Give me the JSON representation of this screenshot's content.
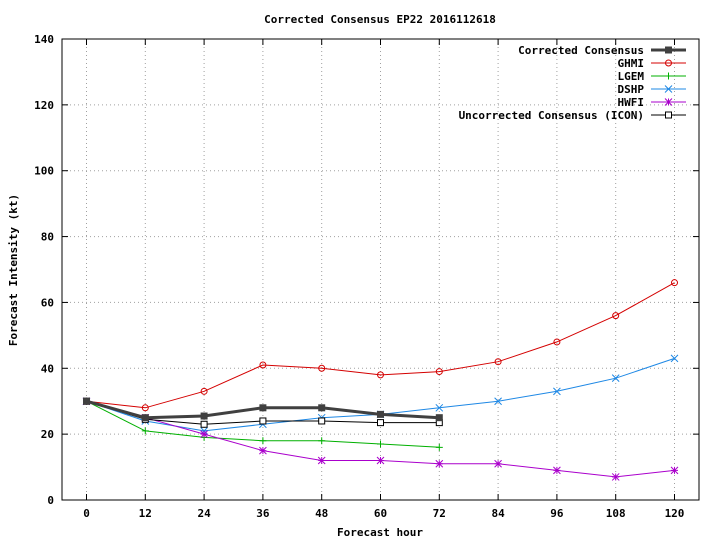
{
  "chart_data": {
    "type": "line",
    "title": "Corrected Consensus  EP22 2016112618",
    "xlabel": "Forecast hour",
    "ylabel": "Forecast Intensity (kt)",
    "xlim": [
      -5,
      125
    ],
    "ylim": [
      0,
      140
    ],
    "xticks": [
      0,
      12,
      24,
      36,
      48,
      60,
      72,
      84,
      96,
      108,
      120
    ],
    "yticks": [
      0,
      20,
      40,
      60,
      80,
      100,
      120,
      140
    ],
    "grid": true,
    "legend_position": "top-right",
    "series": [
      {
        "name": "Corrected Consensus",
        "color": "#404040",
        "marker": "filled-square",
        "x": [
          0,
          12,
          24,
          36,
          48,
          60,
          72
        ],
        "y": [
          30,
          25,
          25.5,
          28,
          28,
          26,
          25
        ]
      },
      {
        "name": "GHMI",
        "color": "#d40000",
        "marker": "circle",
        "x": [
          0,
          12,
          24,
          36,
          48,
          60,
          72,
          84,
          96,
          108,
          120
        ],
        "y": [
          30,
          28,
          33,
          41,
          40,
          38,
          39,
          42,
          48,
          56,
          66
        ]
      },
      {
        "name": "LGEM",
        "color": "#00b000",
        "marker": "plus",
        "x": [
          0,
          12,
          24,
          36,
          48,
          60,
          72
        ],
        "y": [
          30,
          21,
          19,
          18,
          18,
          17,
          16
        ]
      },
      {
        "name": "DSHP",
        "color": "#1e88e5",
        "marker": "x",
        "x": [
          0,
          12,
          24,
          36,
          48,
          60,
          72,
          84,
          96,
          108,
          120
        ],
        "y": [
          30,
          24,
          21,
          23,
          25,
          26,
          28,
          30,
          33,
          37,
          43
        ]
      },
      {
        "name": "HWFI",
        "color": "#aa00cc",
        "marker": "star",
        "x": [
          0,
          12,
          24,
          36,
          48,
          60,
          72,
          84,
          96,
          108,
          120
        ],
        "y": [
          30,
          25,
          20,
          15,
          12,
          12,
          11,
          11,
          9,
          7,
          9
        ]
      },
      {
        "name": "Uncorrected Consensus (ICON)",
        "color": "#000000",
        "marker": "open-square",
        "x": [
          0,
          12,
          24,
          36,
          48,
          60,
          72
        ],
        "y": [
          30,
          24.5,
          23,
          24,
          24,
          23.5,
          23.5
        ]
      }
    ]
  }
}
